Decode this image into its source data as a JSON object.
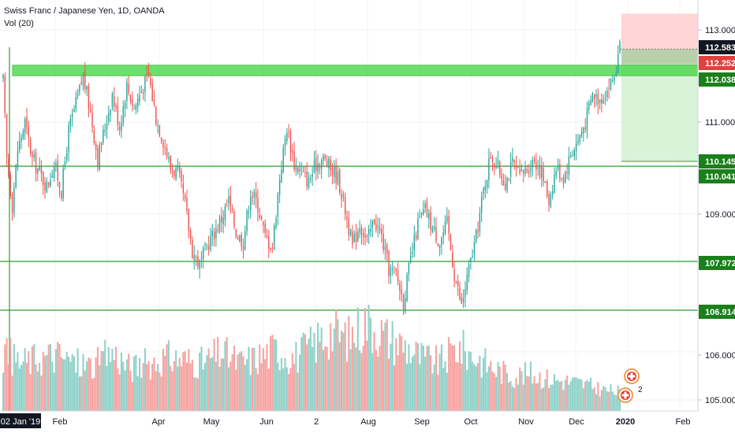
{
  "legend": {
    "title": "Swiss Franc / Japanese Yen, 1D, OANDA",
    "volume_label": "Vol (20)"
  },
  "colors": {
    "up": "#26a69a",
    "down": "#ef5350",
    "vol_up": "#8fd1c8",
    "vol_down": "#f5a3a1",
    "zone": "#3cd63c",
    "level_line": "#2f9e2f",
    "last_price": "#131722",
    "level_label_bg": "#1b7f1b",
    "stop_zone": "#ffcccc",
    "target_zone": "#d4f2d4"
  },
  "marker_label": "2",
  "chart_data": {
    "type": "candlestick",
    "y_axis_ticks": [
      "113.000",
      "111.000",
      "109.000",
      "106.000",
      "105.000"
    ],
    "price_range": [
      104.85,
      113.35
    ],
    "x_axis_labels": [
      "02 Jan '19",
      "Feb",
      "Apr",
      "May",
      "Jun",
      "2",
      "Aug",
      "Sep",
      "Oct",
      "Nov",
      "Dec",
      "2020",
      "Feb"
    ],
    "price_labels": [
      {
        "value": "112.583",
        "kind": "last"
      },
      {
        "value": "112.252",
        "kind": "short_entry"
      },
      {
        "value": "112.038",
        "kind": "level"
      },
      {
        "value": "110.145",
        "kind": "level"
      },
      {
        "value": "110.041",
        "kind": "level"
      },
      {
        "value": "107.972",
        "kind": "level"
      },
      {
        "value": "106.914",
        "kind": "level"
      }
    ],
    "resistance_zone": [
      112.04,
      112.2
    ],
    "horizontal_levels": [
      110.041,
      107.972,
      106.914
    ],
    "position": {
      "type": "short",
      "entry": 112.252,
      "stop": 113.35,
      "target": 110.145
    },
    "close_path": [
      [
        0,
        111.9
      ],
      [
        2,
        110.2
      ],
      [
        5,
        109.2
      ],
      [
        8,
        110.4
      ],
      [
        12,
        111.0
      ],
      [
        16,
        110.2
      ],
      [
        20,
        109.9
      ],
      [
        24,
        109.6
      ],
      [
        28,
        110.1
      ],
      [
        32,
        109.5
      ],
      [
        36,
        110.8
      ],
      [
        40,
        111.4
      ],
      [
        44,
        112.0
      ],
      [
        48,
        111.2
      ],
      [
        52,
        110.2
      ],
      [
        56,
        110.9
      ],
      [
        60,
        111.6
      ],
      [
        64,
        110.9
      ],
      [
        68,
        111.8
      ],
      [
        72,
        111.3
      ],
      [
        76,
        111.7
      ],
      [
        80,
        112.0
      ],
      [
        84,
        111.1
      ],
      [
        88,
        110.6
      ],
      [
        92,
        110.0
      ],
      [
        96,
        109.9
      ],
      [
        100,
        109.2
      ],
      [
        104,
        108.2
      ],
      [
        108,
        107.9
      ],
      [
        112,
        108.3
      ],
      [
        116,
        108.6
      ],
      [
        120,
        108.9
      ],
      [
        124,
        109.3
      ],
      [
        128,
        108.6
      ],
      [
        132,
        108.4
      ],
      [
        136,
        109.5
      ],
      [
        140,
        109.2
      ],
      [
        144,
        108.5
      ],
      [
        148,
        108.3
      ],
      [
        152,
        109.8
      ],
      [
        156,
        110.9
      ],
      [
        160,
        110.1
      ],
      [
        164,
        109.9
      ],
      [
        168,
        109.7
      ],
      [
        172,
        110.1
      ],
      [
        176,
        110.2
      ],
      [
        180,
        110.0
      ],
      [
        184,
        109.8
      ],
      [
        188,
        109.1
      ],
      [
        192,
        108.3
      ],
      [
        196,
        108.8
      ],
      [
        200,
        108.4
      ],
      [
        204,
        108.9
      ],
      [
        208,
        108.5
      ],
      [
        212,
        107.8
      ],
      [
        216,
        107.7
      ],
      [
        220,
        107.1
      ],
      [
        224,
        108.0
      ],
      [
        228,
        108.8
      ],
      [
        232,
        109.1
      ],
      [
        236,
        108.7
      ],
      [
        240,
        108.4
      ],
      [
        244,
        108.8
      ],
      [
        248,
        107.7
      ],
      [
        252,
        107.0
      ],
      [
        256,
        107.8
      ],
      [
        260,
        108.5
      ],
      [
        264,
        109.5
      ],
      [
        268,
        110.3
      ],
      [
        272,
        110.0
      ],
      [
        276,
        109.7
      ],
      [
        280,
        110.1
      ],
      [
        284,
        109.8
      ],
      [
        288,
        110.0
      ],
      [
        292,
        110.2
      ],
      [
        296,
        109.9
      ],
      [
        300,
        109.3
      ],
      [
        304,
        110.0
      ],
      [
        308,
        109.8
      ],
      [
        312,
        110.3
      ],
      [
        316,
        110.6
      ],
      [
        320,
        111.0
      ],
      [
        324,
        111.6
      ],
      [
        328,
        111.5
      ],
      [
        332,
        111.7
      ],
      [
        336,
        112.0
      ],
      [
        339,
        112.583
      ]
    ],
    "volume_path": [
      [
        0,
        0.55
      ],
      [
        10,
        0.45
      ],
      [
        20,
        0.5
      ],
      [
        30,
        0.52
      ],
      [
        40,
        0.45
      ],
      [
        50,
        0.42
      ],
      [
        60,
        0.55
      ],
      [
        70,
        0.4
      ],
      [
        80,
        0.45
      ],
      [
        90,
        0.5
      ],
      [
        100,
        0.48
      ],
      [
        110,
        0.45
      ],
      [
        120,
        0.55
      ],
      [
        130,
        0.45
      ],
      [
        140,
        0.5
      ],
      [
        150,
        0.58
      ],
      [
        160,
        0.5
      ],
      [
        170,
        0.62
      ],
      [
        180,
        0.75
      ],
      [
        190,
        0.68
      ],
      [
        200,
        0.85
      ],
      [
        210,
        0.7
      ],
      [
        220,
        0.62
      ],
      [
        230,
        0.5
      ],
      [
        240,
        0.45
      ],
      [
        250,
        0.6
      ],
      [
        260,
        0.5
      ],
      [
        270,
        0.4
      ],
      [
        280,
        0.33
      ],
      [
        290,
        0.35
      ],
      [
        300,
        0.3
      ],
      [
        310,
        0.28
      ],
      [
        320,
        0.25
      ],
      [
        330,
        0.2
      ],
      [
        339,
        0.18
      ]
    ]
  }
}
